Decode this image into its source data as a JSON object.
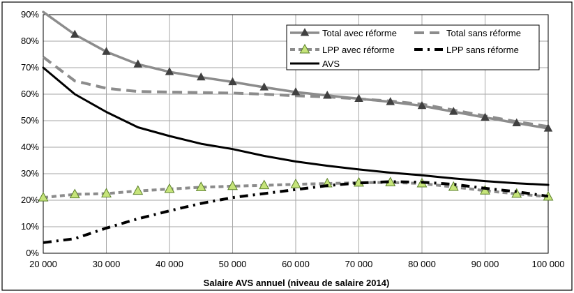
{
  "chart_data": {
    "type": "line",
    "xlabel": "Salaire AVS annuel (niveau de salaire 2014)",
    "ylabel": "",
    "xlim": [
      20000,
      100000
    ],
    "ylim": [
      0,
      90
    ],
    "x_ticks": [
      20000,
      30000,
      40000,
      50000,
      60000,
      70000,
      80000,
      90000,
      100000
    ],
    "x_tick_labels": [
      "20 000",
      "30 000",
      "40 000",
      "50 000",
      "60 000",
      "70 000",
      "80 000",
      "90 000",
      "100 000"
    ],
    "y_ticks": [
      0,
      10,
      20,
      30,
      40,
      50,
      60,
      70,
      80,
      90
    ],
    "y_tick_labels": [
      "0%",
      "10%",
      "20%",
      "30%",
      "40%",
      "50%",
      "60%",
      "70%",
      "80%",
      "90%"
    ],
    "grid": true,
    "legend_position": "top-right",
    "x": [
      20000,
      25000,
      30000,
      35000,
      40000,
      45000,
      50000,
      55000,
      60000,
      65000,
      70000,
      75000,
      80000,
      85000,
      90000,
      95000,
      100000
    ],
    "series": [
      {
        "name": "Total avec réforme",
        "color": "#8c8c8c",
        "style": "solid",
        "marker": "triangle",
        "values": [
          91,
          82.5,
          76,
          71.3,
          68.4,
          66.4,
          64.6,
          62.6,
          60.8,
          59.5,
          58.3,
          57.1,
          55.6,
          53.4,
          51.2,
          49.1,
          47.1
        ]
      },
      {
        "name": "Total sans réforme",
        "color": "#8c8c8c",
        "style": "dashed",
        "marker": "none",
        "values": [
          74,
          65,
          62.2,
          61,
          60.8,
          60.6,
          60.4,
          60,
          59.4,
          59,
          58.2,
          57.4,
          56.2,
          54,
          51.8,
          49.6,
          47.8
        ]
      },
      {
        "name": "LPP avec réforme",
        "color": "#8c8c8c",
        "style": "dotted",
        "marker": "triangle-green",
        "values": [
          21,
          22.2,
          22.5,
          23.5,
          24.2,
          24.9,
          25.3,
          25.6,
          26,
          26.3,
          26.6,
          26.7,
          26.3,
          25,
          23.6,
          22.4,
          21.3
        ]
      },
      {
        "name": "LPP sans réforme",
        "color": "#000000",
        "style": "dashdot",
        "marker": "none",
        "values": [
          4,
          5.5,
          9.5,
          13,
          16,
          18.8,
          21,
          22.5,
          24,
          25.5,
          26.5,
          27,
          26.8,
          26,
          24.5,
          23.2,
          21.5
        ]
      },
      {
        "name": "AVS",
        "color": "#000000",
        "style": "solid",
        "marker": "none",
        "values": [
          70,
          60,
          53.3,
          47.5,
          44.2,
          41.3,
          39.3,
          36.7,
          34.6,
          33,
          31.6,
          30.4,
          29.4,
          28.2,
          27.2,
          26.4,
          25.8
        ]
      }
    ]
  }
}
